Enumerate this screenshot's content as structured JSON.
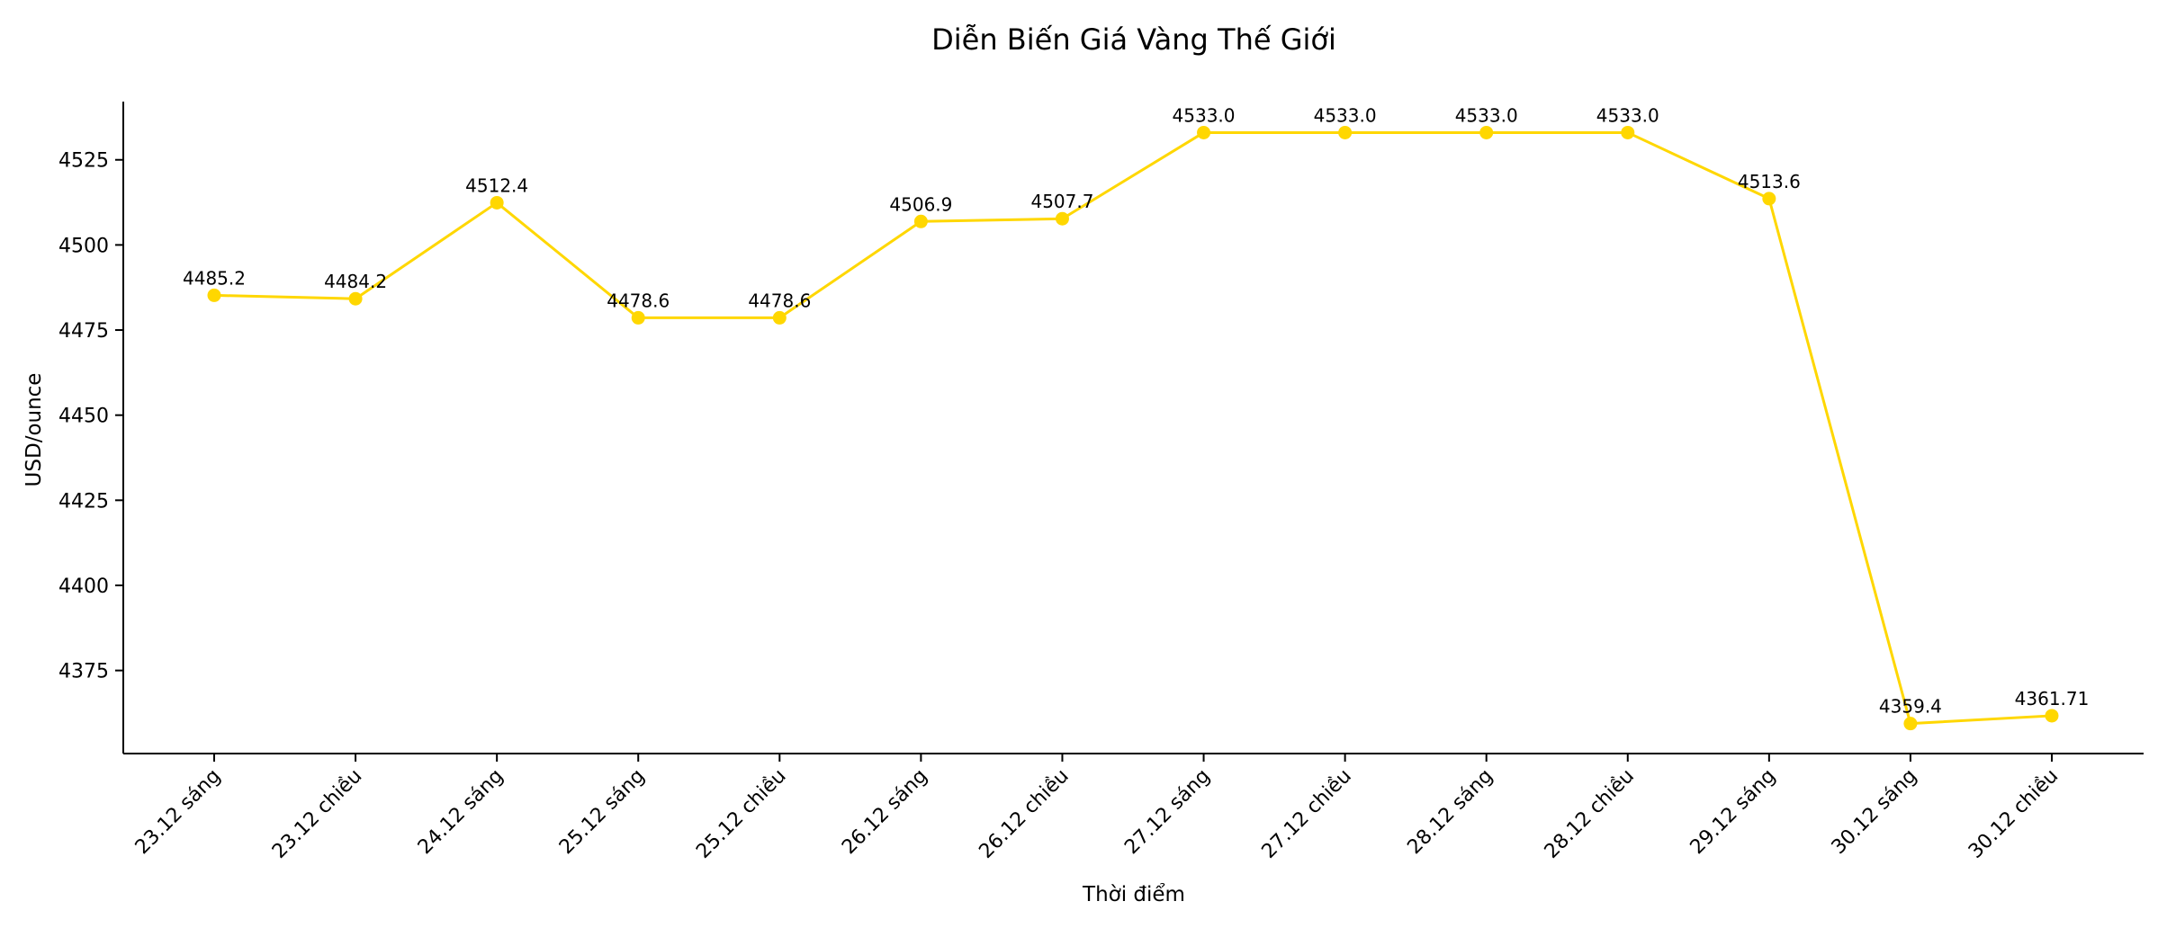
{
  "chart_data": {
    "type": "line",
    "title": "Diễn Biến Giá Vàng Thế Giới",
    "xlabel": "Thời điểm",
    "ylabel": "USD/ounce",
    "categories": [
      "23.12 sáng",
      "23.12 chiều",
      "24.12 sáng",
      "25.12 sáng",
      "25.12 chiều",
      "26.12 sáng",
      "26.12 chiều",
      "27.12 sáng",
      "27.12 chiều",
      "28.12 sáng",
      "28.12 chiều",
      "29.12 sáng",
      "30.12 sáng",
      "30.12 chiều"
    ],
    "series": [
      {
        "values": [
          4485.2,
          4484.2,
          4512.4,
          4478.6,
          4478.6,
          4506.9,
          4507.7,
          4533.0,
          4533.0,
          4533.0,
          4533.0,
          4513.6,
          4359.4,
          4361.71
        ]
      }
    ],
    "data_labels": [
      "4485.2",
      "4484.2",
      "4512.4",
      "4478.6",
      "4478.6",
      "4506.9",
      "4507.7",
      "4533.0",
      "4533.0",
      "4533.0",
      "4533.0",
      "4513.6",
      "4359.4",
      "4361.71"
    ],
    "yticks": [
      4375,
      4400,
      4425,
      4450,
      4475,
      4500,
      4525
    ],
    "ylim": [
      4350.6,
      4542.1
    ],
    "grid": false,
    "legend": "none",
    "color": "#FFD700",
    "marker": "circle"
  }
}
